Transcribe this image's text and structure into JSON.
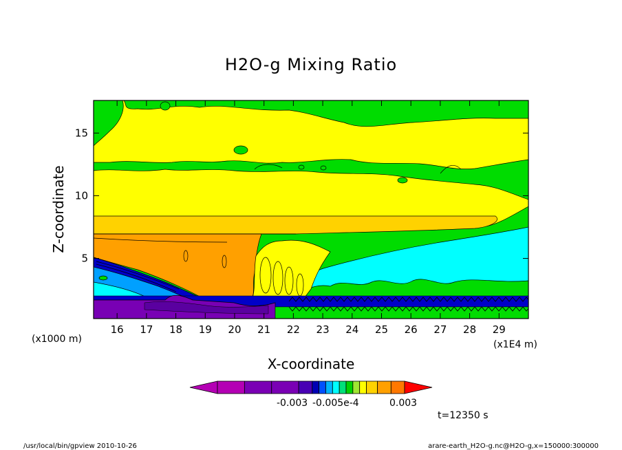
{
  "chart_data": {
    "type": "heatmap",
    "title": "H2O-g Mixing Ratio",
    "xlabel": "X-coordinate",
    "ylabel": "Z-coordinate",
    "x_unit": "(x1E4 m)",
    "y_unit": "(x1000 m)",
    "x_ticks": [
      16,
      17,
      18,
      19,
      20,
      21,
      22,
      23,
      24,
      25,
      26,
      27,
      28,
      29
    ],
    "y_ticks": [
      5,
      10,
      15
    ],
    "xlim": [
      15.2,
      30.0
    ],
    "ylim": [
      0.2,
      17.6
    ],
    "colorbar_labels": [
      "-0.003",
      "-0.005e-4",
      "0.003"
    ],
    "colorbar_colors": [
      "#b400b4",
      "#b400b4",
      "#7a00b4",
      "#7a00b4",
      "#4800b4",
      "#0000b4",
      "#0050ff",
      "#00b4ff",
      "#00ffff",
      "#00e07a",
      "#00d200",
      "#a0e632",
      "#ffff00",
      "#ffd200",
      "#ffa000",
      "#ff7800",
      "#ff0000"
    ],
    "field_colors": {
      "green": "#00dc00",
      "yellow": "#ffff00",
      "light_orange": "#ffd200",
      "orange": "#ffa000",
      "dark_orange": "#ff8c00",
      "cyan": "#00ffff",
      "light_blue": "#00a0ff",
      "blue": "#0000c8",
      "purple": "#7800b4",
      "dark_purple": "#5a00a0"
    },
    "time_label": "t=12350 s",
    "footer_left": "/usr/local/bin/gpview  2010-10-26",
    "footer_right": "arare-earth_H2O-g.nc@H2O-g,x=150000:300000"
  }
}
